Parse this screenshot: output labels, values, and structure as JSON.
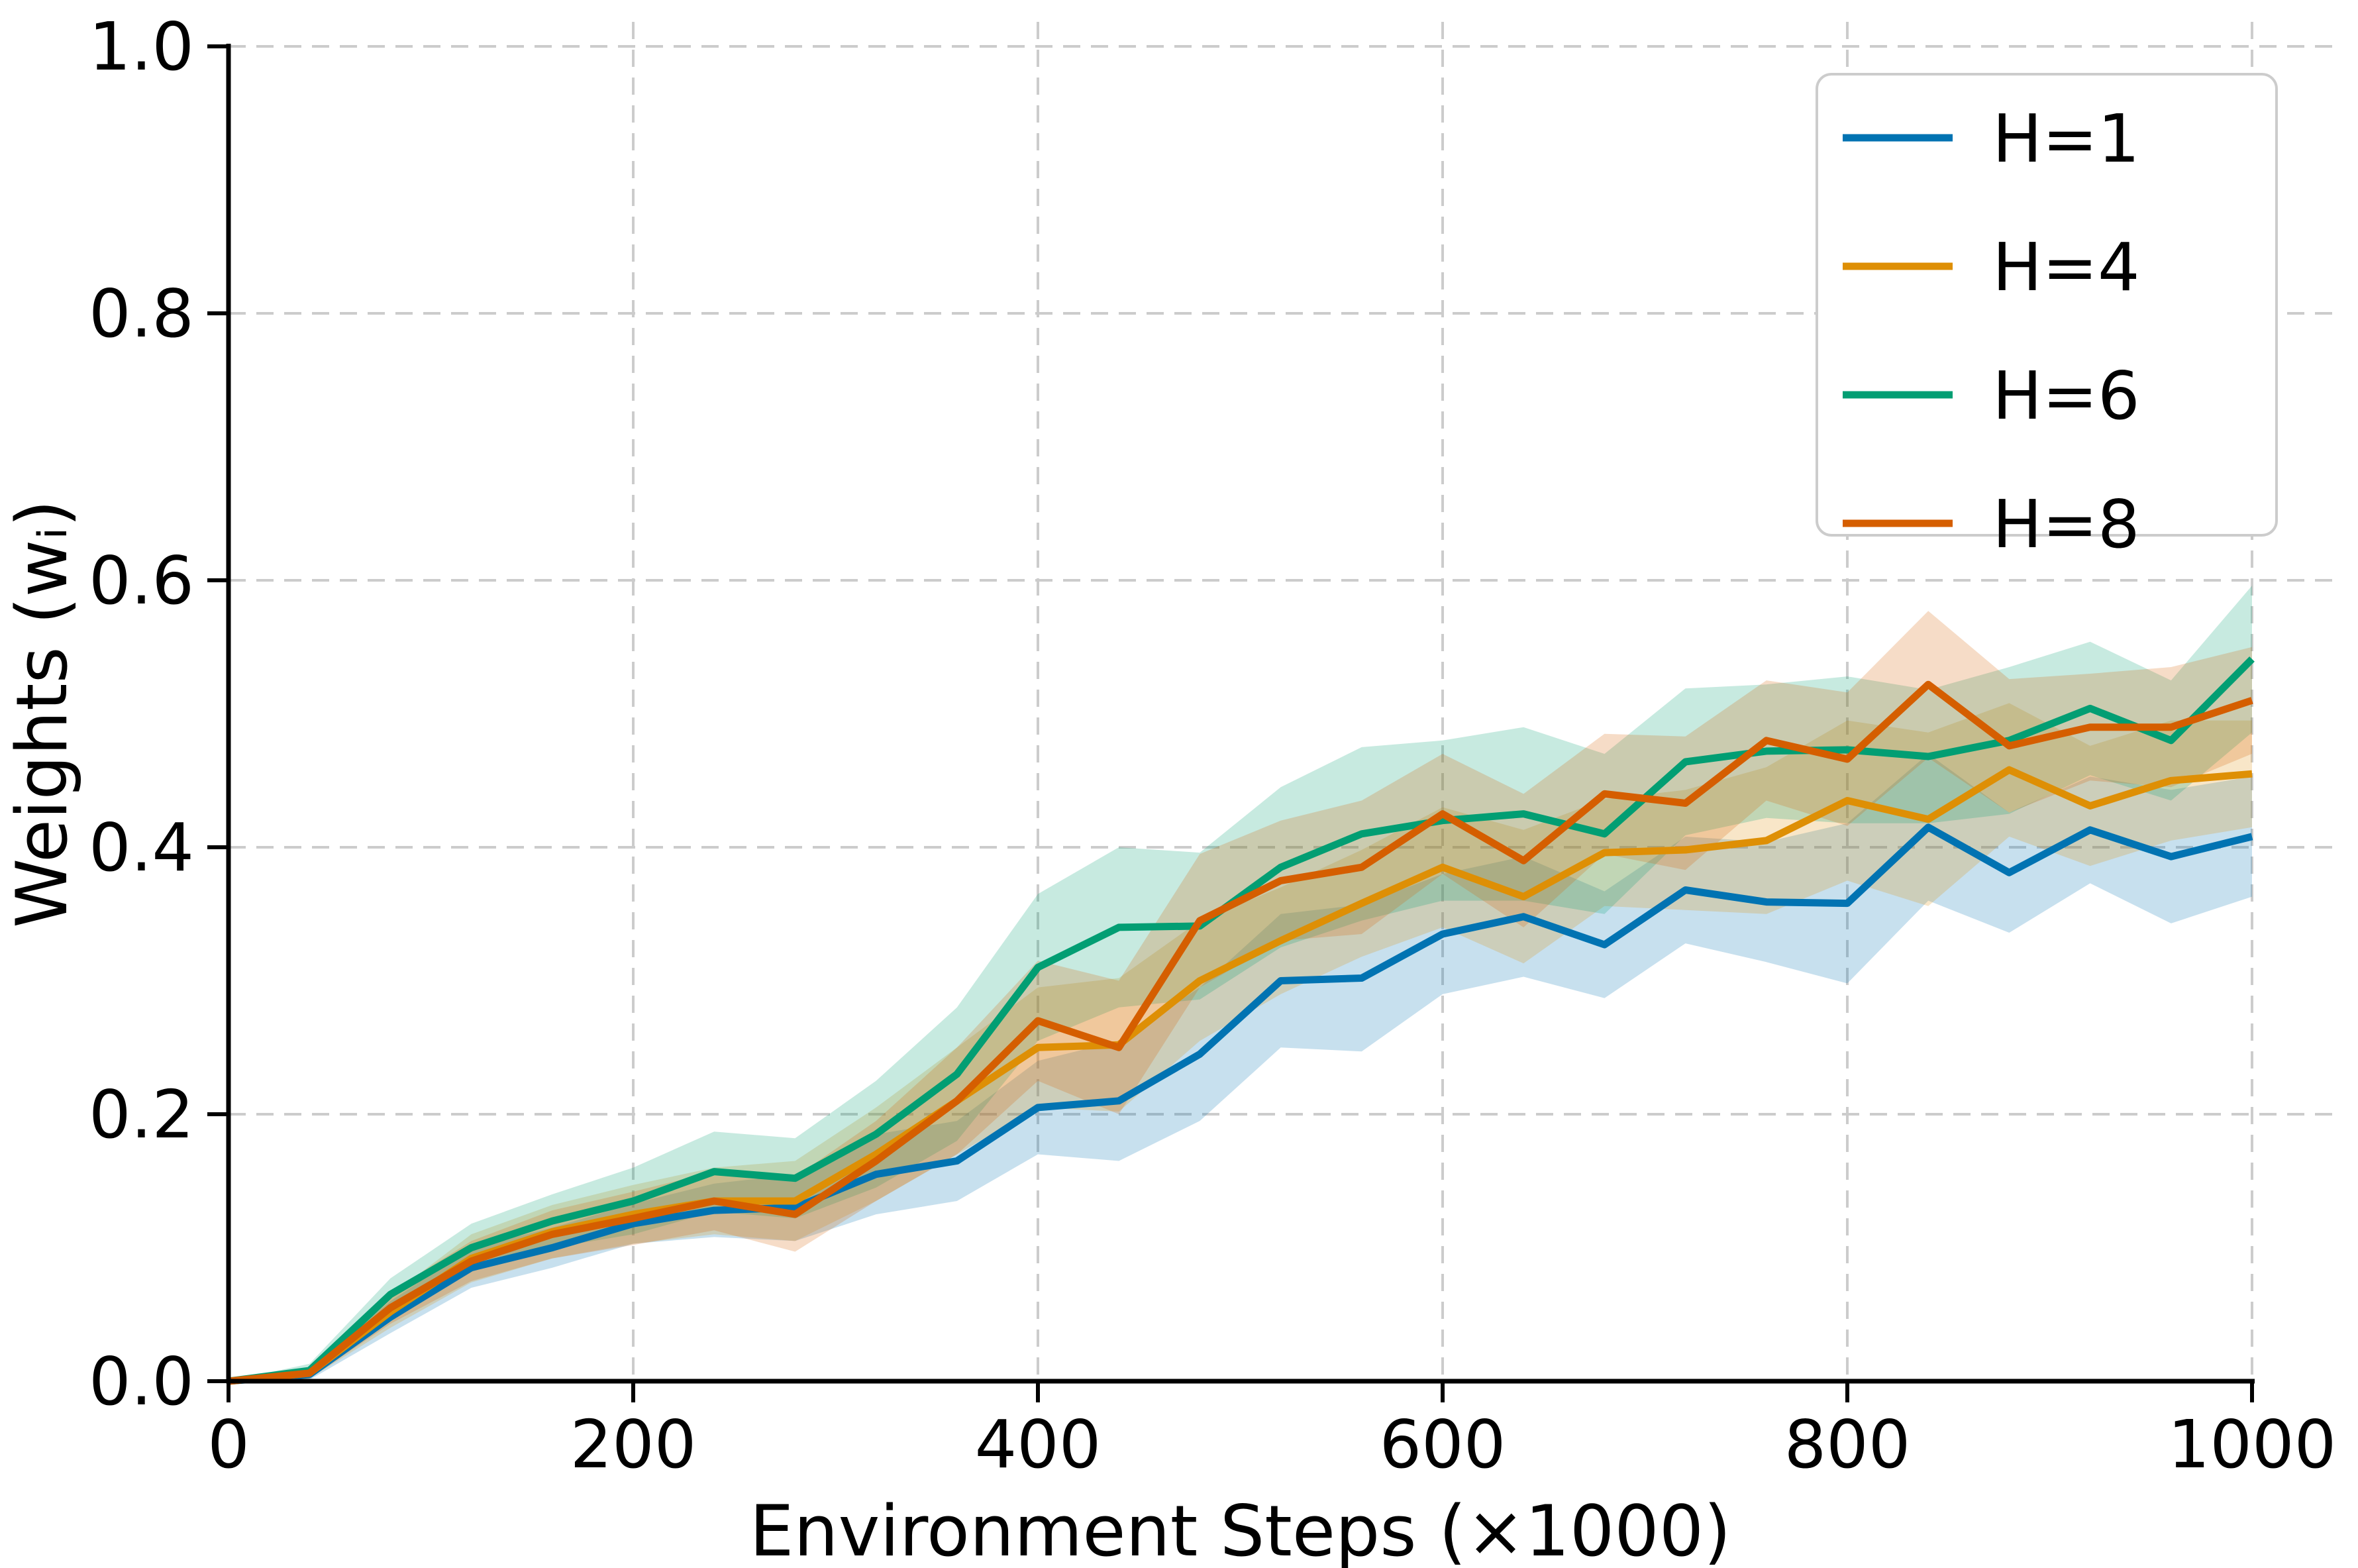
{
  "figure": {
    "background": "#ffffff",
    "grid_color": "#cccccc",
    "spine_color": "#000000",
    "legend_border_color": "#cccccc",
    "legend_background": "#ffffff"
  },
  "chart_data": {
    "type": "line",
    "title": "",
    "xlabel": "Environment Steps (×1000)",
    "ylabel": "Weights (wᵢ)",
    "xlim": [
      0,
      1045
    ],
    "ylim": [
      0.0,
      1.018
    ],
    "grid": true,
    "grid_style": "dashed",
    "legend_position": "upper right",
    "x_ticks": [
      0,
      200,
      400,
      600,
      800,
      1000
    ],
    "x_tick_labels": [
      "0",
      "200",
      "400",
      "600",
      "800",
      "1000"
    ],
    "y_ticks": [
      0.0,
      0.2,
      0.4,
      0.6,
      0.8,
      1.0
    ],
    "y_tick_labels": [
      "0.0",
      "0.2",
      "0.4",
      "0.6",
      "0.8",
      "1.0"
    ],
    "x": [
      0,
      40,
      80,
      120,
      160,
      200,
      240,
      280,
      320,
      360,
      400,
      440,
      480,
      520,
      560,
      600,
      640,
      680,
      720,
      760,
      800,
      840,
      880,
      920,
      960,
      1000
    ],
    "series": [
      {
        "name": "H=1",
        "color": "#0173b2",
        "mean": [
          0,
          0.005,
          0.048,
          0.085,
          0.1,
          0.118,
          0.128,
          0.13,
          0.155,
          0.165,
          0.205,
          0.21,
          0.245,
          0.3,
          0.302,
          0.335,
          0.348,
          0.327,
          0.368,
          0.359,
          0.358,
          0.415,
          0.381,
          0.413,
          0.393,
          0.408
        ],
        "band": [
          0,
          0.004,
          0.012,
          0.015,
          0.015,
          0.015,
          0.02,
          0.025,
          0.03,
          0.03,
          0.035,
          0.045,
          0.05,
          0.05,
          0.055,
          0.045,
          0.045,
          0.04,
          0.04,
          0.045,
          0.06,
          0.055,
          0.045,
          0.04,
          0.05,
          0.045
        ]
      },
      {
        "name": "H=4",
        "color": "#de8f05",
        "mean": [
          0,
          0.006,
          0.052,
          0.092,
          0.112,
          0.125,
          0.135,
          0.135,
          0.17,
          0.21,
          0.25,
          0.252,
          0.3,
          0.33,
          0.358,
          0.385,
          0.363,
          0.396,
          0.398,
          0.405,
          0.435,
          0.421,
          0.458,
          0.431,
          0.45,
          0.455
        ],
        "band": [
          0,
          0.004,
          0.012,
          0.018,
          0.02,
          0.022,
          0.025,
          0.03,
          0.035,
          0.04,
          0.045,
          0.05,
          0.045,
          0.04,
          0.04,
          0.045,
          0.05,
          0.04,
          0.045,
          0.055,
          0.06,
          0.065,
          0.05,
          0.045,
          0.045,
          0.04
        ]
      },
      {
        "name": "H=6",
        "color": "#029e73",
        "mean": [
          0,
          0.008,
          0.065,
          0.1,
          0.12,
          0.135,
          0.157,
          0.152,
          0.185,
          0.23,
          0.31,
          0.34,
          0.341,
          0.385,
          0.41,
          0.42,
          0.425,
          0.41,
          0.464,
          0.472,
          0.473,
          0.468,
          0.48,
          0.504,
          0.48,
          0.541
        ],
        "band": [
          0,
          0.005,
          0.012,
          0.018,
          0.02,
          0.025,
          0.03,
          0.03,
          0.04,
          0.05,
          0.055,
          0.06,
          0.055,
          0.06,
          0.065,
          0.06,
          0.065,
          0.06,
          0.055,
          0.05,
          0.055,
          0.05,
          0.055,
          0.05,
          0.045,
          0.055
        ]
      },
      {
        "name": "H=8",
        "color": "#d55e00",
        "mean": [
          0,
          0.006,
          0.055,
          0.09,
          0.11,
          0.122,
          0.135,
          0.125,
          0.165,
          0.21,
          0.27,
          0.25,
          0.345,
          0.375,
          0.385,
          0.425,
          0.39,
          0.44,
          0.433,
          0.48,
          0.466,
          0.522,
          0.476,
          0.49,
          0.49,
          0.51
        ],
        "band": [
          0,
          0.004,
          0.012,
          0.015,
          0.018,
          0.02,
          0.022,
          0.028,
          0.03,
          0.04,
          0.045,
          0.05,
          0.05,
          0.045,
          0.05,
          0.045,
          0.05,
          0.045,
          0.05,
          0.045,
          0.05,
          0.055,
          0.05,
          0.04,
          0.045,
          0.04
        ]
      }
    ]
  }
}
